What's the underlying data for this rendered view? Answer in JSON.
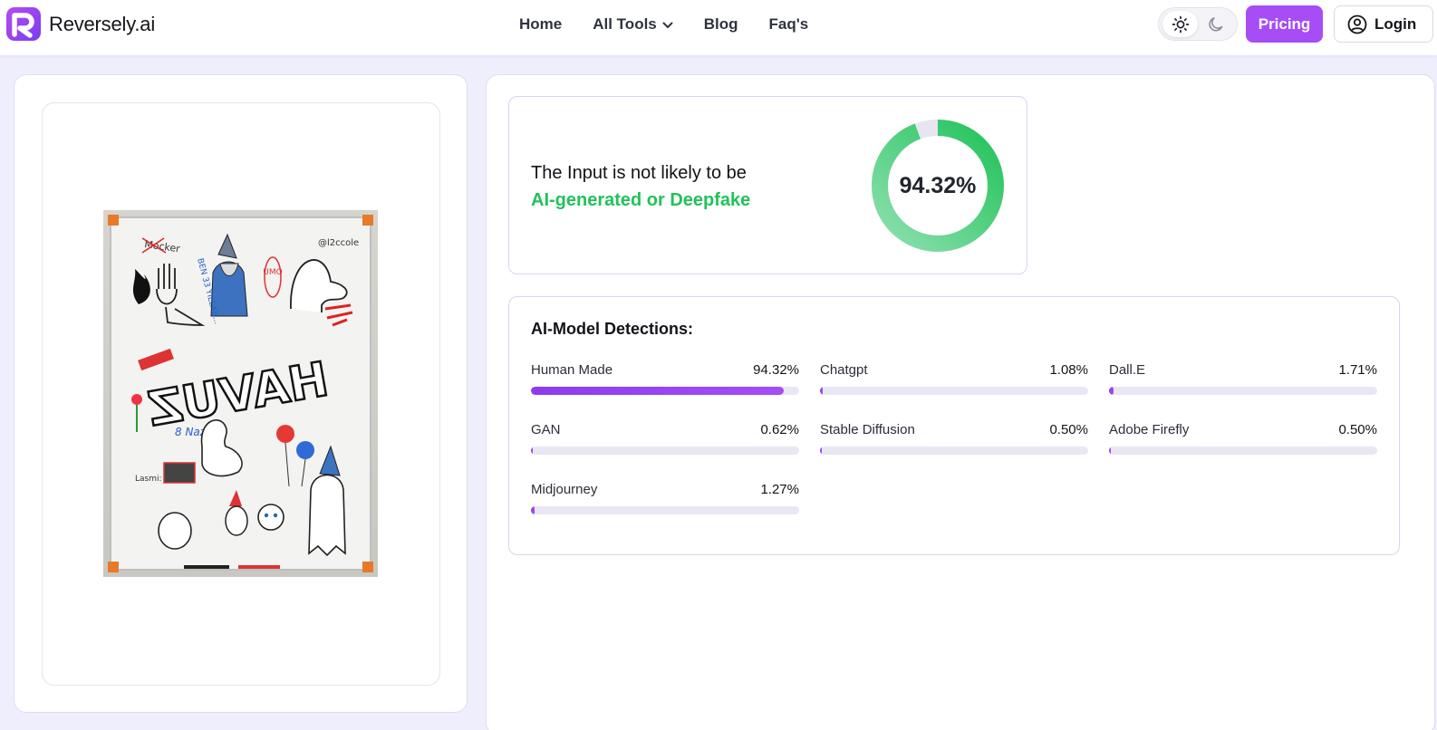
{
  "brand": {
    "name": "Reversely.ai",
    "accent": "#a64df5",
    "success": "#22c25a"
  },
  "nav": {
    "items": [
      {
        "label": "Home",
        "has_dropdown": false
      },
      {
        "label": "All Tools",
        "has_dropdown": true
      },
      {
        "label": "Blog",
        "has_dropdown": false
      },
      {
        "label": "Faq's",
        "has_dropdown": false
      }
    ]
  },
  "header": {
    "theme": {
      "selected": "light",
      "options": [
        "sun-icon",
        "moon-icon"
      ]
    },
    "pricing_label": "Pricing",
    "login_label": "Login"
  },
  "result": {
    "line1": "The Input is not likely to be",
    "line2": "AI-generated or Deepfake",
    "score_label": "94.32%",
    "score_value": 94.32
  },
  "detections": {
    "title": "AI-Model Detections:",
    "items": [
      {
        "name": "Human Made",
        "percent_label": "94.32%",
        "value": 94.32
      },
      {
        "name": "Chatgpt",
        "percent_label": "1.08%",
        "value": 1.08
      },
      {
        "name": "Dall.E",
        "percent_label": "1.71%",
        "value": 1.71
      },
      {
        "name": "GAN",
        "percent_label": "0.62%",
        "value": 0.62
      },
      {
        "name": "Stable Diffusion",
        "percent_label": "0.50%",
        "value": 0.5
      },
      {
        "name": "Adobe Firefly",
        "percent_label": "0.50%",
        "value": 0.5
      },
      {
        "name": "Midjourney",
        "percent_label": "1.27%",
        "value": 1.27
      }
    ]
  },
  "image": {
    "handwritten_text": [
      "HAVUZ",
      "Mocker",
      "BEN 33 YILLAR...",
      "UMO",
      "8 Nazım",
      "Lasmi:",
      "@l2ccole"
    ]
  }
}
